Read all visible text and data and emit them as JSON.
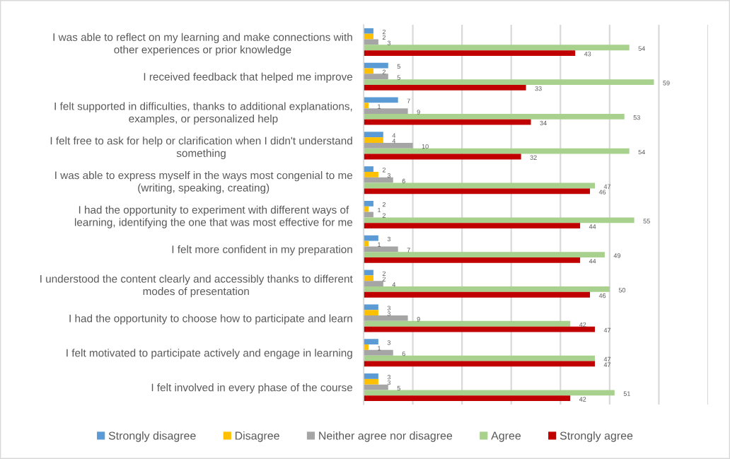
{
  "chart_data": {
    "type": "bar",
    "orientation": "horizontal",
    "categories": [
      "I was able to reflect on my learning and make connections with\nother experiences or prior knowledge",
      "I received feedback that helped me improve",
      "I felt supported in difficulties, thanks to additional explanations,\nexamples, or personalized help",
      "I felt free to ask for help or clarification when I didn't understand\nsomething",
      "I was able to express myself in the ways most congenial to me\n(writing, speaking, creating)",
      "I had the opportunity to experiment with different ways of\nlearning, identifying the one that was most effective for me",
      "I felt more confident in my preparation",
      "I understood the content clearly and accessibly thanks to different\nmodes of presentation",
      "I had the opportunity to choose how to participate and learn",
      "I felt motivated to participate actively and engage in learning",
      "I felt involved in every phase of the course"
    ],
    "series": [
      {
        "name": "Strongly disagree",
        "color": "#5b9bd5",
        "values": [
          2,
          5,
          7,
          4,
          2,
          2,
          3,
          2,
          3,
          3,
          3
        ]
      },
      {
        "name": "Disagree",
        "color": "#ffc000",
        "values": [
          2,
          2,
          1,
          4,
          3,
          1,
          1,
          2,
          3,
          1,
          3
        ]
      },
      {
        "name": "Neither agree nor disagree",
        "color": "#a5a5a5",
        "values": [
          3,
          5,
          9,
          10,
          6,
          2,
          7,
          4,
          9,
          6,
          5
        ]
      },
      {
        "name": "Agree",
        "color": "#a9d18e",
        "values": [
          54,
          59,
          53,
          54,
          47,
          55,
          49,
          50,
          42,
          47,
          51
        ]
      },
      {
        "name": "Strongly agree",
        "color": "#c00000",
        "values": [
          43,
          33,
          34,
          32,
          46,
          44,
          44,
          46,
          47,
          47,
          42
        ]
      }
    ],
    "xlim": [
      0,
      70
    ],
    "xticks": [
      {
        "value": 0,
        "label": null
      },
      {
        "value": 10,
        "label": null
      },
      {
        "value": 20,
        "label": null
      },
      {
        "value": 30,
        "label": null
      },
      {
        "value": 40,
        "label": null
      },
      {
        "value": 50,
        "label": null
      },
      {
        "value": 60,
        "label": null
      },
      {
        "value": 70,
        "label": null
      }
    ],
    "grid": "x",
    "legend": "bottom",
    "data_labels": true,
    "tick_labels": "y"
  }
}
